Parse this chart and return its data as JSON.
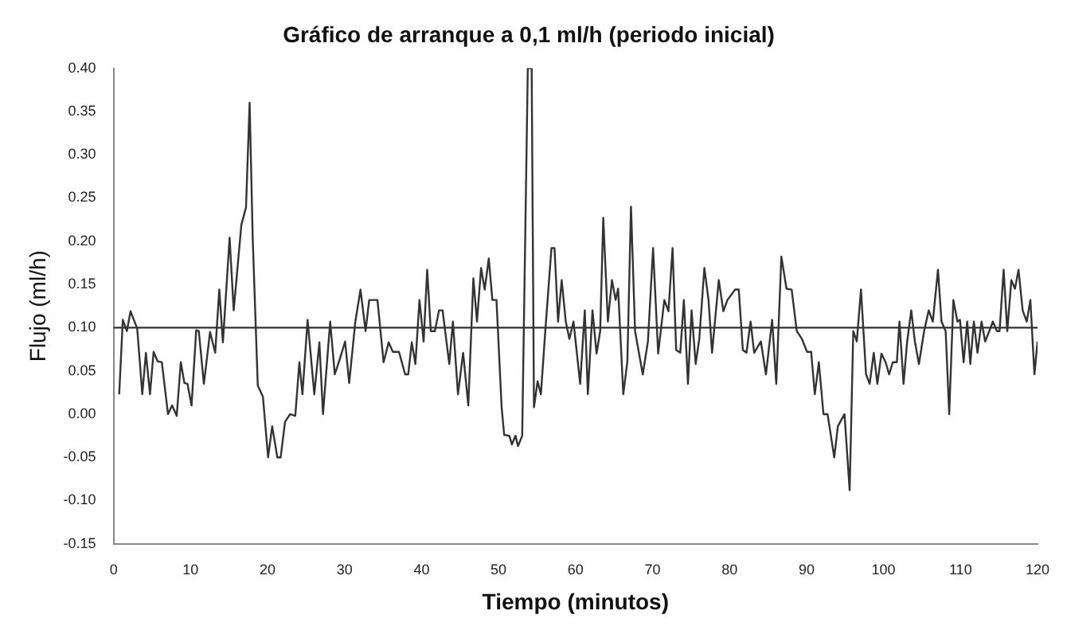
{
  "chart_data": {
    "type": "line",
    "title": "Gráfico de arranque a 0,1 ml/h (periodo inicial)",
    "xlabel": "Tiempo (minutos)",
    "ylabel": "Flujo (ml/h)",
    "xlim": [
      0,
      120
    ],
    "xticks": [
      0,
      10,
      20,
      30,
      40,
      50,
      60,
      70,
      80,
      90,
      100,
      110,
      120
    ],
    "ylim": [
      -0.15,
      0.4
    ],
    "yticks": [
      {
        "value": -0.15,
        "label": "-0.15"
      },
      {
        "value": -0.1,
        "label": "-0.10"
      },
      {
        "value": -0.05,
        "label": "-0.05"
      },
      {
        "value": 0,
        "label": "0.00"
      },
      {
        "value": 0.05,
        "label": "0.05"
      },
      {
        "value": 0.1,
        "label": "0.10"
      },
      {
        "value": 0.15,
        "label": "0.15"
      },
      {
        "value": 0.2,
        "label": "0.20"
      },
      {
        "value": 0.25,
        "label": "0.25"
      },
      {
        "value": 0.3,
        "label": "0.30"
      },
      {
        "value": 0.35,
        "label": "0.35"
      },
      {
        "value": 0.4,
        "label": "0.40"
      }
    ],
    "grid": false,
    "legend": false,
    "marker": "none",
    "line_style": "solid",
    "ref_lines": [
      {
        "axis": "y",
        "value": 0.1,
        "color": "#333333"
      }
    ],
    "x": [
      0.73,
      1.2,
      1.73,
      2.2,
      3.07,
      3.73,
      4.2,
      4.73,
      5.2,
      5.73,
      6.27,
      7.07,
      7.6,
      8.2,
      8.73,
      9.2,
      9.6,
      10.13,
      10.73,
      11.07,
      11.73,
      12.53,
      13.2,
      13.73,
      14.2,
      15.07,
      15.6,
      16.6,
      17.2,
      17.67,
      18.07,
      18.73,
      19.4,
      20.07,
      20.6,
      21.27,
      21.7,
      22.27,
      22.93,
      23.6,
      24.13,
      24.53,
      25.2,
      26.07,
      26.73,
      27.2,
      28.13,
      28.73,
      29.4,
      30.07,
      30.6,
      31.4,
      32.07,
      32.73,
      33.2,
      34.27,
      35.07,
      35.73,
      36.27,
      37.07,
      37.87,
      38.27,
      38.73,
      39.2,
      39.73,
      40.27,
      40.73,
      41.2,
      41.73,
      42.27,
      42.73,
      43.6,
      44.07,
      44.73,
      45.4,
      46.07,
      46.73,
      47.2,
      47.73,
      48.2,
      48.73,
      49.2,
      49.73,
      50.4,
      50.73,
      51.4,
      51.73,
      52.2,
      52.53,
      53.07,
      53.8,
      54.3,
      54.6,
      55.07,
      55.5,
      56.07,
      56.87,
      57.27,
      57.73,
      58.2,
      58.73,
      59.2,
      59.73,
      60.6,
      61.2,
      61.6,
      62.2,
      62.73,
      63.2,
      63.6,
      64.2,
      64.73,
      65.2,
      65.53,
      66.2,
      66.73,
      67.2,
      67.73,
      68.73,
      69.4,
      70.07,
      70.73,
      71.53,
      72.07,
      72.6,
      73.07,
      73.6,
      74.07,
      74.6,
      75.07,
      75.6,
      76.07,
      76.73,
      77.27,
      77.73,
      78.6,
      79.2,
      79.73,
      80.73,
      81.2,
      81.73,
      82.2,
      82.73,
      83.2,
      84.07,
      84.73,
      85.53,
      86.07,
      86.73,
      87.4,
      88.07,
      88.73,
      89.4,
      90.07,
      90.6,
      91.07,
      91.6,
      92.2,
      92.73,
      93.6,
      94.07,
      94.93,
      95.6,
      96.07,
      96.53,
      97.07,
      97.73,
      98.2,
      98.73,
      99.2,
      99.73,
      100.27,
      100.73,
      101.2,
      101.73,
      102.07,
      102.6,
      103.07,
      103.6,
      104.07,
      104.6,
      105.27,
      105.87,
      106.4,
      107.07,
      107.53,
      108.07,
      108.53,
      109.07,
      109.6,
      109.93,
      110.4,
      110.87,
      111.27,
      111.73,
      112.2,
      112.73,
      113.2,
      113.73,
      114.2,
      114.73,
      115.07,
      115.6,
      116.07,
      116.6,
      117.07,
      117.53,
      118.07,
      118.6,
      119.07,
      119.6,
      120
    ],
    "series": [
      {
        "color": "#333333",
        "values": [
          0.023,
          0.109,
          0.096,
          0.119,
          0.099,
          0.023,
          0.071,
          0.023,
          0.072,
          0.061,
          0.06,
          0.0,
          0.01,
          -0.002,
          0.06,
          0.036,
          0.035,
          0.01,
          0.097,
          0.096,
          0.035,
          0.095,
          0.071,
          0.144,
          0.083,
          0.204,
          0.12,
          0.219,
          0.239,
          0.36,
          0.204,
          0.033,
          0.02,
          -0.05,
          -0.014,
          -0.05,
          -0.05,
          -0.009,
          0.0,
          -0.002,
          0.06,
          0.023,
          0.109,
          0.023,
          0.083,
          0.0,
          0.107,
          0.046,
          0.064,
          0.084,
          0.036,
          0.107,
          0.144,
          0.096,
          0.132,
          0.132,
          0.06,
          0.083,
          0.072,
          0.072,
          0.046,
          0.046,
          0.083,
          0.058,
          0.132,
          0.084,
          0.167,
          0.096,
          0.096,
          0.12,
          0.12,
          0.058,
          0.107,
          0.023,
          0.071,
          0.01,
          0.157,
          0.107,
          0.169,
          0.144,
          0.18,
          0.132,
          0.132,
          0.008,
          -0.024,
          -0.025,
          -0.035,
          -0.025,
          -0.037,
          -0.025,
          0.4,
          0.4,
          0.008,
          0.038,
          0.023,
          0.096,
          0.192,
          0.192,
          0.107,
          0.155,
          0.107,
          0.087,
          0.107,
          0.035,
          0.12,
          0.023,
          0.12,
          0.07,
          0.096,
          0.227,
          0.107,
          0.155,
          0.132,
          0.145,
          0.023,
          0.061,
          0.24,
          0.096,
          0.046,
          0.084,
          0.192,
          0.07,
          0.132,
          0.119,
          0.192,
          0.074,
          0.071,
          0.132,
          0.035,
          0.12,
          0.058,
          0.087,
          0.169,
          0.132,
          0.071,
          0.155,
          0.119,
          0.132,
          0.144,
          0.144,
          0.074,
          0.071,
          0.107,
          0.071,
          0.084,
          0.046,
          0.109,
          0.035,
          0.182,
          0.145,
          0.144,
          0.096,
          0.087,
          0.072,
          0.072,
          0.023,
          0.06,
          0.0,
          0.0,
          -0.05,
          -0.014,
          0.0,
          -0.088,
          0.096,
          0.084,
          0.144,
          0.046,
          0.035,
          0.071,
          0.035,
          0.07,
          0.06,
          0.046,
          0.06,
          0.06,
          0.107,
          0.035,
          0.084,
          0.12,
          0.084,
          0.058,
          0.096,
          0.12,
          0.107,
          0.167,
          0.107,
          0.096,
          0.0,
          0.132,
          0.107,
          0.109,
          0.06,
          0.107,
          0.058,
          0.107,
          0.071,
          0.107,
          0.084,
          0.096,
          0.107,
          0.096,
          0.096,
          0.167,
          0.096,
          0.155,
          0.145,
          0.167,
          0.12,
          0.107,
          0.132,
          0.046,
          0.084
        ]
      }
    ]
  }
}
